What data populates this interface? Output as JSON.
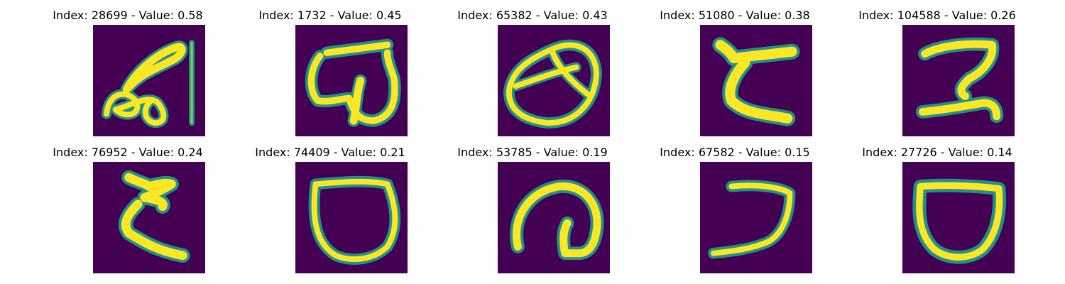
{
  "colors": {
    "background": "#440154",
    "mid": "#21918c",
    "stroke": "#fde725"
  },
  "panels": [
    {
      "title": "Index: 28699 - Value: 0.58",
      "glyph": "glyph-a"
    },
    {
      "title": "Index: 1732 - Value: 0.45",
      "glyph": "glyph-b"
    },
    {
      "title": "Index: 65382 - Value: 0.43",
      "glyph": "glyph-c"
    },
    {
      "title": "Index: 51080 - Value: 0.38",
      "glyph": "glyph-d"
    },
    {
      "title": "Index: 104588 - Value: 0.26",
      "glyph": "glyph-e"
    },
    {
      "title": "Index: 76952 - Value: 0.24",
      "glyph": "glyph-f"
    },
    {
      "title": "Index: 74409 - Value: 0.21",
      "glyph": "glyph-g"
    },
    {
      "title": "Index: 53785 - Value: 0.19",
      "glyph": "glyph-h"
    },
    {
      "title": "Index: 67582 - Value: 0.15",
      "glyph": "glyph-i"
    },
    {
      "title": "Index: 27726 - Value: 0.14",
      "glyph": "glyph-j"
    }
  ]
}
